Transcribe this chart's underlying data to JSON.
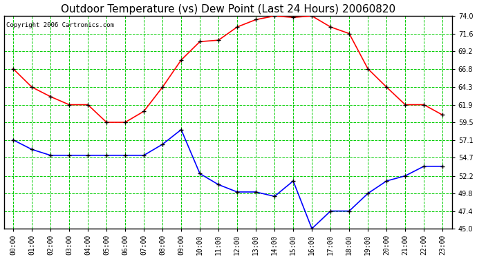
{
  "title": "Outdoor Temperature (vs) Dew Point (Last 24 Hours) 20060820",
  "copyright": "Copyright 2006 Cartronics.com",
  "hours": [
    "00:00",
    "01:00",
    "02:00",
    "03:00",
    "04:00",
    "05:00",
    "06:00",
    "07:00",
    "08:00",
    "09:00",
    "10:00",
    "11:00",
    "12:00",
    "13:00",
    "14:00",
    "15:00",
    "16:00",
    "17:00",
    "18:00",
    "19:00",
    "20:00",
    "21:00",
    "22:00",
    "23:00"
  ],
  "temp_red": [
    66.8,
    64.3,
    63.0,
    61.9,
    61.9,
    59.5,
    59.5,
    61.0,
    64.3,
    68.0,
    70.5,
    70.7,
    72.5,
    73.5,
    74.0,
    73.8,
    74.0,
    72.5,
    71.6,
    66.8,
    64.3,
    61.9,
    61.9,
    60.5
  ],
  "dew_blue": [
    57.1,
    55.8,
    55.0,
    55.0,
    55.0,
    55.0,
    55.0,
    55.0,
    56.5,
    58.5,
    52.5,
    51.0,
    50.0,
    50.0,
    49.4,
    51.5,
    45.0,
    47.4,
    47.4,
    49.8,
    51.5,
    52.2,
    53.5,
    53.5
  ],
  "ylim": [
    45.0,
    74.0
  ],
  "yticks": [
    45.0,
    47.4,
    49.8,
    52.2,
    54.7,
    57.1,
    59.5,
    61.9,
    64.3,
    66.8,
    69.2,
    71.6,
    74.0
  ],
  "fig_color": "#ffffff",
  "plot_bg": "#ffffff",
  "grid_color": "#00cc00",
  "grid_linestyle": "--",
  "title_color": "#000000",
  "red_color": "#ff0000",
  "blue_color": "#0000ff",
  "marker_color": "#000000",
  "title_fontsize": 11,
  "tick_fontsize": 7,
  "copyright_fontsize": 6.5
}
